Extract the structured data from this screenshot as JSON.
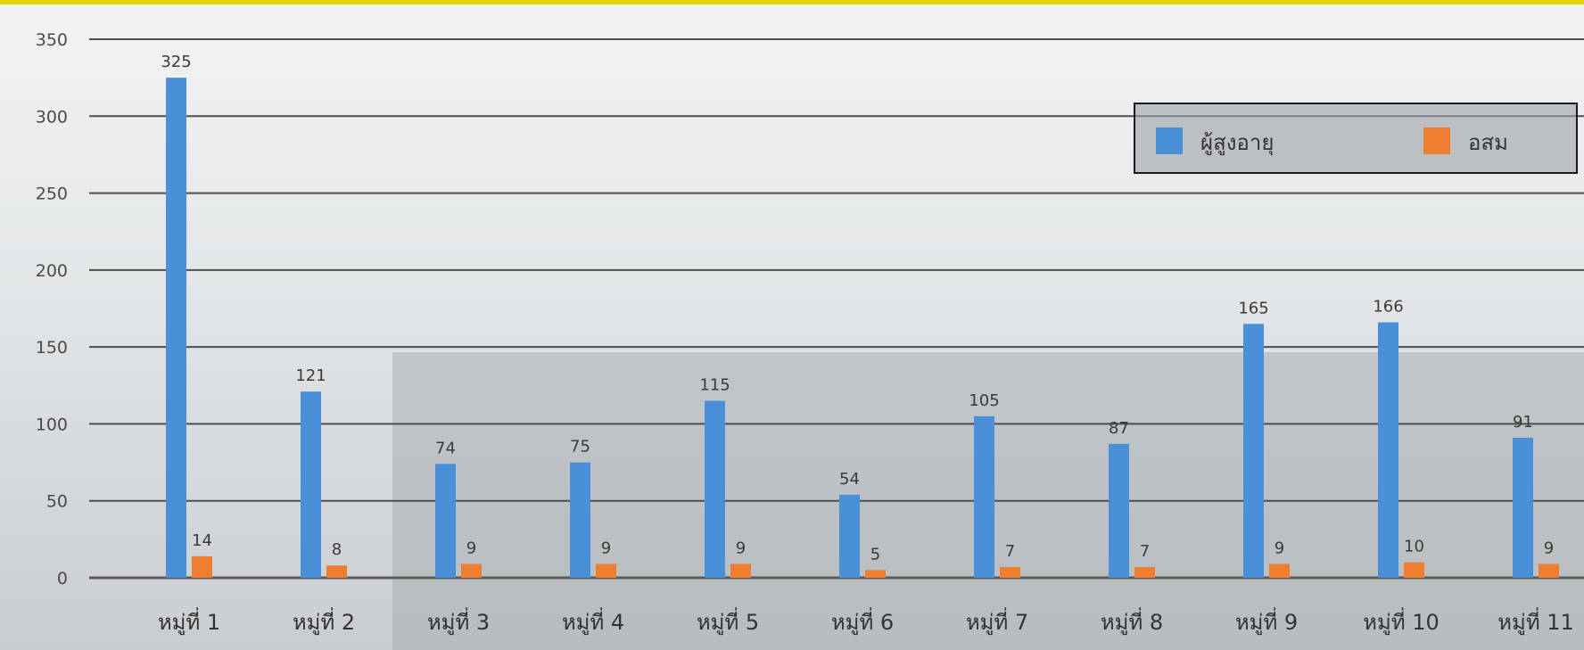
{
  "chart_data": {
    "type": "bar",
    "title": "",
    "xlabel": "",
    "ylabel": "",
    "ylim": [
      0,
      350
    ],
    "yticks": [
      0,
      50,
      100,
      150,
      200,
      250,
      300,
      350
    ],
    "grid": true,
    "legend_position": "top-right",
    "categories": [
      "หมู่ที่ 1",
      "หมู่ที่ 2",
      "หมู่ที่ 3",
      "หมู่ที่ 4",
      "หมู่ที่ 5",
      "หมู่ที่ 6",
      "หมู่ที่ 7",
      "หมู่ที่ 8",
      "หมู่ที่ 9",
      "หมู่ที่ 10",
      "หมู่ที่ 11"
    ],
    "series": [
      {
        "name": "ผู้สูงอายุ",
        "color": "#4a90d9",
        "values": [
          325,
          121,
          74,
          75,
          115,
          54,
          105,
          87,
          165,
          166,
          91
        ]
      },
      {
        "name": "อสม",
        "color": "#ed7d31",
        "values": [
          14,
          8,
          9,
          9,
          9,
          5,
          7,
          7,
          9,
          10,
          9
        ]
      }
    ]
  }
}
